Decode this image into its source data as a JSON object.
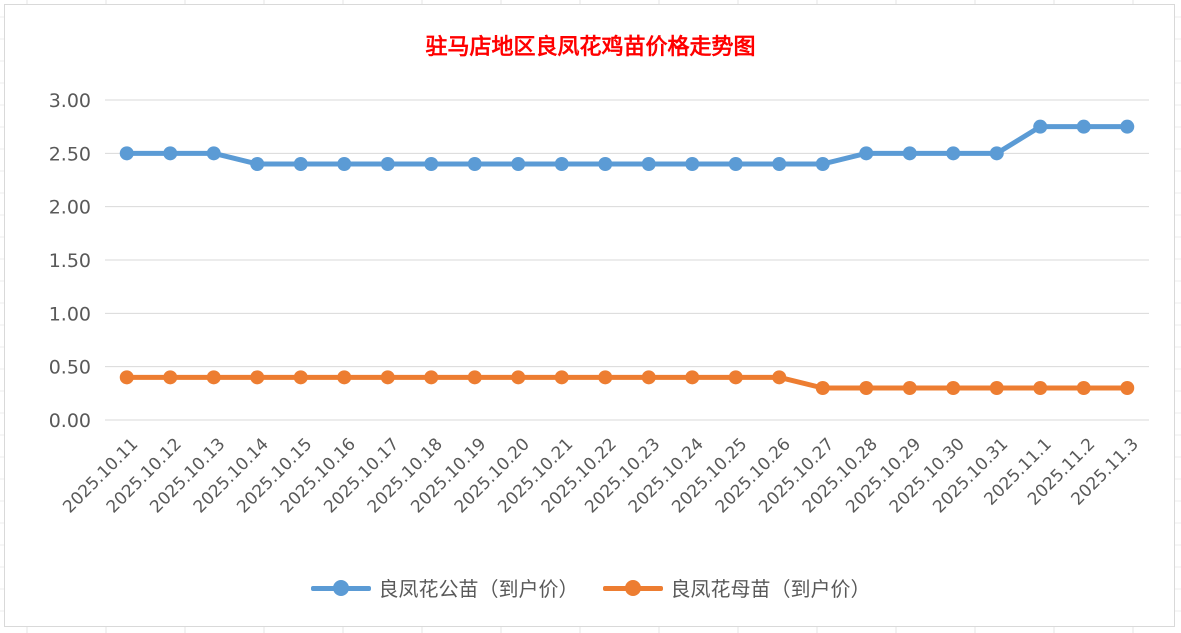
{
  "chart_data": {
    "type": "line",
    "title": "驻马店地区良凤花鸡苗价格走势图",
    "categories": [
      "2025.10.11",
      "2025.10.12",
      "2025.10.13",
      "2025.10.14",
      "2025.10.15",
      "2025.10.16",
      "2025.10.17",
      "2025.10.18",
      "2025.10.19",
      "2025.10.20",
      "2025.10.21",
      "2025.10.22",
      "2025.10.23",
      "2025.10.24",
      "2025.10.25",
      "2025.10.26",
      "2025.10.27",
      "2025.10.28",
      "2025.10.29",
      "2025.10.30",
      "2025.10.31",
      "2025.11.1",
      "2025.11.2",
      "2025.11.3"
    ],
    "series": [
      {
        "name": "良凤花公苗（到户价）",
        "color": "#5b9bd5",
        "values": [
          2.5,
          2.5,
          2.5,
          2.4,
          2.4,
          2.4,
          2.4,
          2.4,
          2.4,
          2.4,
          2.4,
          2.4,
          2.4,
          2.4,
          2.4,
          2.4,
          2.4,
          2.5,
          2.5,
          2.5,
          2.5,
          2.75,
          2.75,
          2.75
        ]
      },
      {
        "name": "良凤花母苗（到户价）",
        "color": "#ed7d31",
        "values": [
          0.4,
          0.4,
          0.4,
          0.4,
          0.4,
          0.4,
          0.4,
          0.4,
          0.4,
          0.4,
          0.4,
          0.4,
          0.4,
          0.4,
          0.4,
          0.4,
          0.3,
          0.3,
          0.3,
          0.3,
          0.3,
          0.3,
          0.3,
          0.3
        ]
      }
    ],
    "yticks": [
      "0.00",
      "0.50",
      "1.00",
      "1.50",
      "2.00",
      "2.50",
      "3.00"
    ],
    "ylim": [
      0,
      3
    ],
    "xlabel": "",
    "ylabel": "",
    "grid": true,
    "legend_position": "bottom"
  }
}
